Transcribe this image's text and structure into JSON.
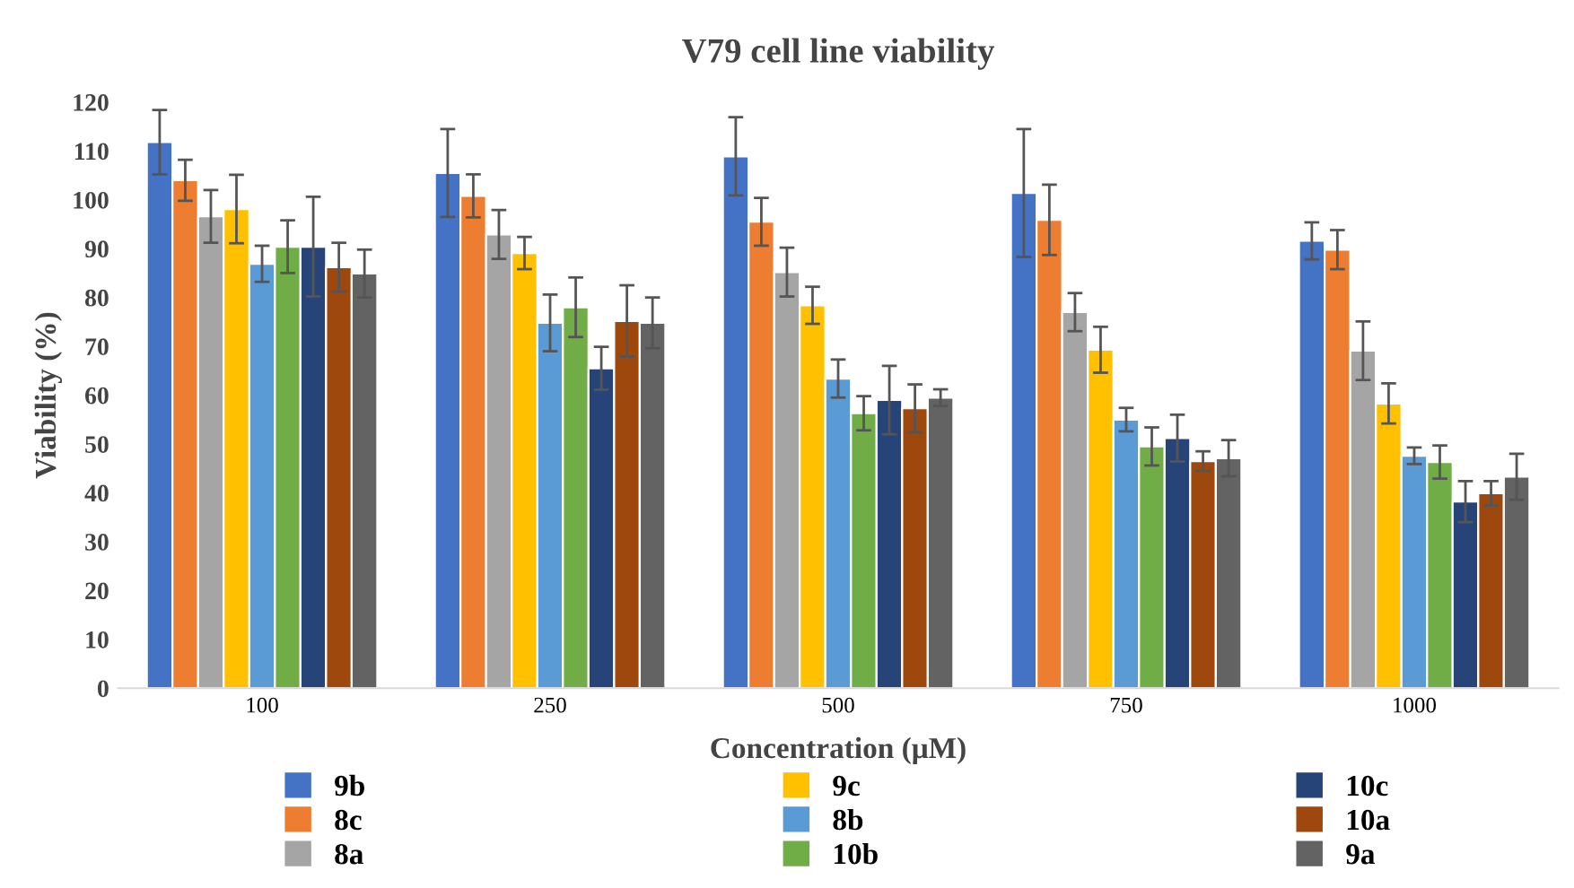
{
  "chart_data": {
    "type": "bar",
    "title": "V79 cell line viability",
    "xlabel": "Concentration (μM)",
    "ylabel": "Viability (%)",
    "categories": [
      "100",
      "250",
      "500",
      "750",
      "1000"
    ],
    "series": [
      {
        "name": "9b",
        "color": "#4472c4",
        "values": [
          111.8,
          105.5,
          108.9,
          101.4,
          91.6
        ],
        "errors": [
          6.6,
          9,
          8,
          13.1,
          3.8
        ]
      },
      {
        "name": "8c",
        "color": "#ed7d31",
        "values": [
          104.0,
          100.8,
          95.5,
          95.9,
          89.8
        ],
        "errors": [
          4.2,
          4.4,
          4.9,
          7.2,
          4
        ]
      },
      {
        "name": "8a",
        "color": "#a5a5a5",
        "values": [
          96.6,
          92.9,
          85.2,
          77.0,
          69.1
        ],
        "errors": [
          5.4,
          5,
          5,
          3.9,
          6
        ]
      },
      {
        "name": "9c",
        "color": "#ffc000",
        "values": [
          98.1,
          89.1,
          78.4,
          69.3,
          58.3
        ],
        "errors": [
          7,
          3.3,
          3.8,
          4.7,
          4.1
        ]
      },
      {
        "name": "8b",
        "color": "#5b9bd5",
        "values": [
          86.9,
          74.8,
          63.4,
          55.0,
          47.6
        ],
        "errors": [
          3.7,
          5.8,
          3.9,
          2.4,
          1.7
        ]
      },
      {
        "name": "10b",
        "color": "#70ad47",
        "values": [
          90.4,
          78.0,
          56.3,
          49.5,
          46.3
        ],
        "errors": [
          5.4,
          6.1,
          3.5,
          3.9,
          3.4
        ]
      },
      {
        "name": "10c",
        "color": "#264478",
        "values": [
          90.4,
          65.5,
          59.0,
          51.2,
          38.2
        ],
        "errors": [
          10.2,
          4.4,
          7,
          4.8,
          4.2
        ]
      },
      {
        "name": "10a",
        "color": "#9e480e",
        "values": [
          86.2,
          75.2,
          57.3,
          46.5,
          39.9
        ],
        "errors": [
          5,
          7.3,
          4.9,
          2,
          2.5
        ]
      },
      {
        "name": "9a",
        "color": "#636363",
        "values": [
          84.9,
          74.8,
          59.5,
          47.1,
          43.3
        ],
        "errors": [
          4.9,
          5.2,
          1.7,
          3.7,
          4.7
        ]
      }
    ],
    "ylim": [
      0,
      120
    ],
    "yticks": [
      0,
      10,
      20,
      30,
      40,
      50,
      60,
      70,
      80,
      90,
      100,
      110,
      120
    ],
    "grid": false,
    "legend": "bottom"
  }
}
